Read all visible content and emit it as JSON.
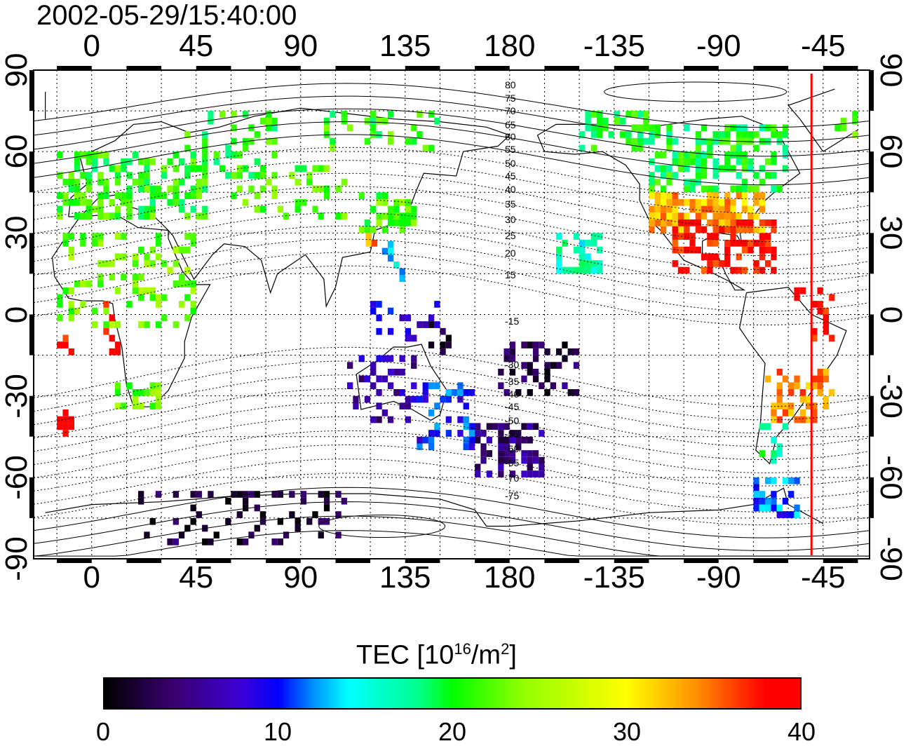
{
  "title": "2002-05-29/15:40:00",
  "axes": {
    "top_ticks": [
      "0",
      "45",
      "90",
      "135",
      "180",
      "-135",
      "-90",
      "-45"
    ],
    "bottom_ticks": [
      "0",
      "45",
      "90",
      "135",
      "180",
      "-135",
      "-90",
      "-45"
    ],
    "left_ticks": [
      "90",
      "60",
      "30",
      "0",
      "-30",
      "-60",
      "-90"
    ],
    "right_ticks": [
      "90",
      "60",
      "30",
      "0",
      "-30",
      "-60",
      "-90"
    ],
    "lon_range": [
      -25,
      335
    ],
    "lat_range": [
      -90,
      90
    ]
  },
  "contour_labels": [
    "80",
    "75",
    "70",
    "65",
    "60",
    "55",
    "50",
    "45",
    "40",
    "35",
    "30",
    "25",
    "20",
    "15",
    "-15",
    "-30",
    "-35",
    "-40",
    "-45",
    "-50",
    "-55",
    "-60",
    "-65",
    "-70",
    "-75"
  ],
  "colorbar": {
    "label_main": "TEC  [10",
    "label_exp1": "16",
    "label_mid": "/m",
    "label_exp2": "2",
    "label_end": "]",
    "ticks": [
      "0",
      "10",
      "20",
      "30",
      "40"
    ],
    "range": [
      0,
      40
    ]
  },
  "marker_line": {
    "lon": -50,
    "color": "#ff0000"
  },
  "colors": {
    "frame": "#000000",
    "map_bg": "#ffffff"
  }
}
